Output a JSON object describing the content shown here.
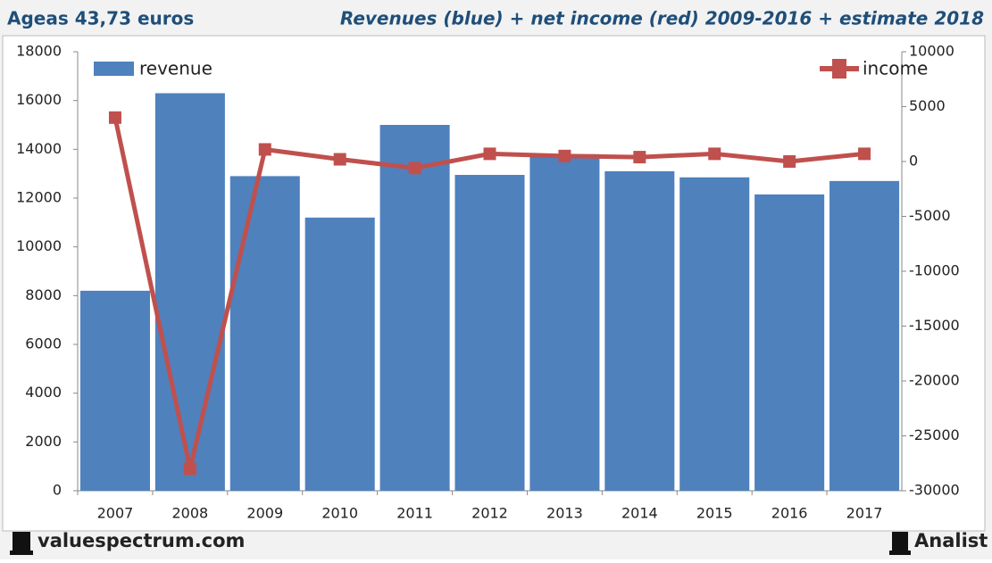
{
  "chart_data": {
    "type": "bar-line",
    "subtitle": "Ageas 43,73 euros",
    "title": "Revenues (blue) + net income (red) 2009-2016 + estimate 2018",
    "categories": [
      "2007",
      "2008",
      "2009",
      "2010",
      "2011",
      "2012",
      "2013",
      "2014",
      "2015",
      "2016",
      "2017"
    ],
    "series": [
      {
        "name": "revenue",
        "type": "bar",
        "color": "#4f81bd",
        "values": [
          8200,
          16300,
          12900,
          11200,
          15000,
          12950,
          13800,
          13100,
          12850,
          12150,
          12700
        ]
      },
      {
        "name": "income",
        "type": "line",
        "axis": "y2",
        "color": "#c0504d",
        "values": [
          4000,
          -28000,
          1100,
          200,
          -600,
          700,
          500,
          400,
          700,
          0,
          700
        ]
      }
    ],
    "ylim": [
      0,
      18000
    ],
    "yticks": [
      0,
      2000,
      4000,
      6000,
      8000,
      10000,
      12000,
      14000,
      16000,
      18000
    ],
    "y2lim": [
      -30000,
      10000
    ],
    "y2ticks": [
      -30000,
      -25000,
      -20000,
      -15000,
      -10000,
      -5000,
      0,
      5000,
      10000
    ],
    "grid": false
  },
  "footer": {
    "site": "valuespectrum.com",
    "brand": "Analist"
  }
}
